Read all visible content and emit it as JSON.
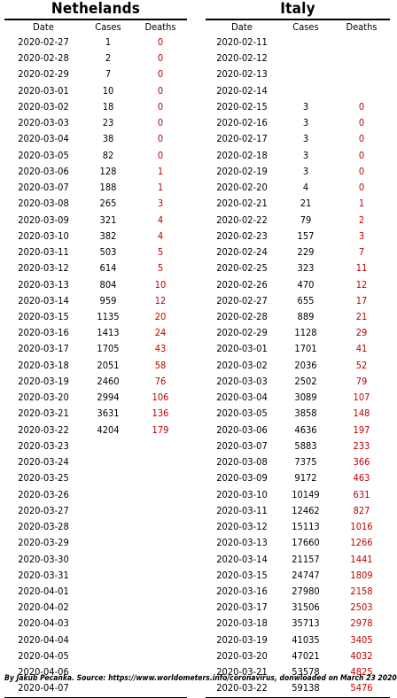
{
  "left": {
    "title": "Nethelands",
    "headers": {
      "date": "Date",
      "cases": "Cases",
      "deaths": "Deaths"
    },
    "rows": [
      {
        "date": "2020-02-27",
        "cases": "1",
        "deaths": "0"
      },
      {
        "date": "2020-02-28",
        "cases": "2",
        "deaths": "0"
      },
      {
        "date": "2020-02-29",
        "cases": "7",
        "deaths": "0"
      },
      {
        "date": "2020-03-01",
        "cases": "10",
        "deaths": "0"
      },
      {
        "date": "2020-03-02",
        "cases": "18",
        "deaths": "0"
      },
      {
        "date": "2020-03-03",
        "cases": "23",
        "deaths": "0"
      },
      {
        "date": "2020-03-04",
        "cases": "38",
        "deaths": "0"
      },
      {
        "date": "2020-03-05",
        "cases": "82",
        "deaths": "0"
      },
      {
        "date": "2020-03-06",
        "cases": "128",
        "deaths": "1"
      },
      {
        "date": "2020-03-07",
        "cases": "188",
        "deaths": "1"
      },
      {
        "date": "2020-03-08",
        "cases": "265",
        "deaths": "3"
      },
      {
        "date": "2020-03-09",
        "cases": "321",
        "deaths": "4"
      },
      {
        "date": "2020-03-10",
        "cases": "382",
        "deaths": "4"
      },
      {
        "date": "2020-03-11",
        "cases": "503",
        "deaths": "5"
      },
      {
        "date": "2020-03-12",
        "cases": "614",
        "deaths": "5"
      },
      {
        "date": "2020-03-13",
        "cases": "804",
        "deaths": "10"
      },
      {
        "date": "2020-03-14",
        "cases": "959",
        "deaths": "12"
      },
      {
        "date": "2020-03-15",
        "cases": "1135",
        "deaths": "20"
      },
      {
        "date": "2020-03-16",
        "cases": "1413",
        "deaths": "24"
      },
      {
        "date": "2020-03-17",
        "cases": "1705",
        "deaths": "43"
      },
      {
        "date": "2020-03-18",
        "cases": "2051",
        "deaths": "58"
      },
      {
        "date": "2020-03-19",
        "cases": "2460",
        "deaths": "76"
      },
      {
        "date": "2020-03-20",
        "cases": "2994",
        "deaths": "106"
      },
      {
        "date": "2020-03-21",
        "cases": "3631",
        "deaths": "136"
      },
      {
        "date": "2020-03-22",
        "cases": "4204",
        "deaths": "179"
      },
      {
        "date": "2020-03-23",
        "cases": "",
        "deaths": ""
      },
      {
        "date": "2020-03-24",
        "cases": "",
        "deaths": ""
      },
      {
        "date": "2020-03-25",
        "cases": "",
        "deaths": ""
      },
      {
        "date": "2020-03-26",
        "cases": "",
        "deaths": ""
      },
      {
        "date": "2020-03-27",
        "cases": "",
        "deaths": ""
      },
      {
        "date": "2020-03-28",
        "cases": "",
        "deaths": ""
      },
      {
        "date": "2020-03-29",
        "cases": "",
        "deaths": ""
      },
      {
        "date": "2020-03-30",
        "cases": "",
        "deaths": ""
      },
      {
        "date": "2020-03-31",
        "cases": "",
        "deaths": ""
      },
      {
        "date": "2020-04-01",
        "cases": "",
        "deaths": ""
      },
      {
        "date": "2020-04-02",
        "cases": "",
        "deaths": ""
      },
      {
        "date": "2020-04-03",
        "cases": "",
        "deaths": ""
      },
      {
        "date": "2020-04-04",
        "cases": "",
        "deaths": ""
      },
      {
        "date": "2020-04-05",
        "cases": "",
        "deaths": ""
      },
      {
        "date": "2020-04-06",
        "cases": "",
        "deaths": ""
      },
      {
        "date": "2020-04-07",
        "cases": "",
        "deaths": ""
      }
    ]
  },
  "right": {
    "title": "Italy",
    "headers": {
      "date": "Date",
      "cases": "Cases",
      "deaths": "Deaths"
    },
    "rows": [
      {
        "date": "2020-02-11",
        "cases": "",
        "deaths": ""
      },
      {
        "date": "2020-02-12",
        "cases": "",
        "deaths": ""
      },
      {
        "date": "2020-02-13",
        "cases": "",
        "deaths": ""
      },
      {
        "date": "2020-02-14",
        "cases": "",
        "deaths": ""
      },
      {
        "date": "2020-02-15",
        "cases": "3",
        "deaths": "0"
      },
      {
        "date": "2020-02-16",
        "cases": "3",
        "deaths": "0"
      },
      {
        "date": "2020-02-17",
        "cases": "3",
        "deaths": "0"
      },
      {
        "date": "2020-02-18",
        "cases": "3",
        "deaths": "0"
      },
      {
        "date": "2020-02-19",
        "cases": "3",
        "deaths": "0"
      },
      {
        "date": "2020-02-20",
        "cases": "4",
        "deaths": "0"
      },
      {
        "date": "2020-02-21",
        "cases": "21",
        "deaths": "1"
      },
      {
        "date": "2020-02-22",
        "cases": "79",
        "deaths": "2"
      },
      {
        "date": "2020-02-23",
        "cases": "157",
        "deaths": "3"
      },
      {
        "date": "2020-02-24",
        "cases": "229",
        "deaths": "7"
      },
      {
        "date": "2020-02-25",
        "cases": "323",
        "deaths": "11"
      },
      {
        "date": "2020-02-26",
        "cases": "470",
        "deaths": "12"
      },
      {
        "date": "2020-02-27",
        "cases": "655",
        "deaths": "17"
      },
      {
        "date": "2020-02-28",
        "cases": "889",
        "deaths": "21"
      },
      {
        "date": "2020-02-29",
        "cases": "1128",
        "deaths": "29"
      },
      {
        "date": "2020-03-01",
        "cases": "1701",
        "deaths": "41"
      },
      {
        "date": "2020-03-02",
        "cases": "2036",
        "deaths": "52"
      },
      {
        "date": "2020-03-03",
        "cases": "2502",
        "deaths": "79"
      },
      {
        "date": "2020-03-04",
        "cases": "3089",
        "deaths": "107"
      },
      {
        "date": "2020-03-05",
        "cases": "3858",
        "deaths": "148"
      },
      {
        "date": "2020-03-06",
        "cases": "4636",
        "deaths": "197"
      },
      {
        "date": "2020-03-07",
        "cases": "5883",
        "deaths": "233"
      },
      {
        "date": "2020-03-08",
        "cases": "7375",
        "deaths": "366"
      },
      {
        "date": "2020-03-09",
        "cases": "9172",
        "deaths": "463"
      },
      {
        "date": "2020-03-10",
        "cases": "10149",
        "deaths": "631"
      },
      {
        "date": "2020-03-11",
        "cases": "12462",
        "deaths": "827"
      },
      {
        "date": "2020-03-12",
        "cases": "15113",
        "deaths": "1016"
      },
      {
        "date": "2020-03-13",
        "cases": "17660",
        "deaths": "1266"
      },
      {
        "date": "2020-03-14",
        "cases": "21157",
        "deaths": "1441"
      },
      {
        "date": "2020-03-15",
        "cases": "24747",
        "deaths": "1809"
      },
      {
        "date": "2020-03-16",
        "cases": "27980",
        "deaths": "2158"
      },
      {
        "date": "2020-03-17",
        "cases": "31506",
        "deaths": "2503"
      },
      {
        "date": "2020-03-18",
        "cases": "35713",
        "deaths": "2978"
      },
      {
        "date": "2020-03-19",
        "cases": "41035",
        "deaths": "3405"
      },
      {
        "date": "2020-03-20",
        "cases": "47021",
        "deaths": "4032"
      },
      {
        "date": "2020-03-21",
        "cases": "53578",
        "deaths": "4825"
      },
      {
        "date": "2020-03-22",
        "cases": "59138",
        "deaths": "5476"
      }
    ]
  },
  "caption": "By Jakub Pecanka. Source: https://www.worldometers.info/coronavirus, donwloaded on March 23 2020",
  "colors": {
    "deaths": "#c00000",
    "text": "#000000",
    "background": "#ffffff"
  }
}
